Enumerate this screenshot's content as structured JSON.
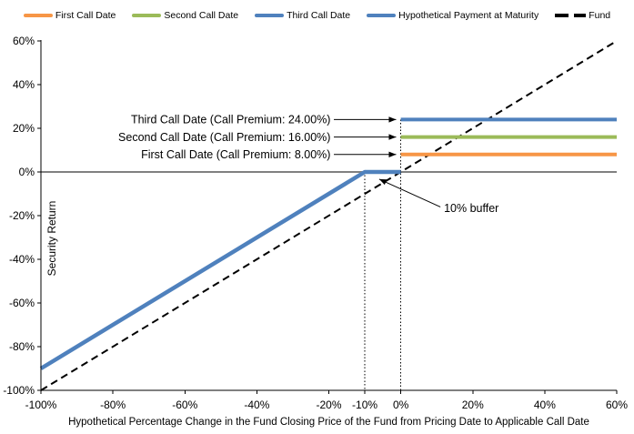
{
  "legend": {
    "items": [
      {
        "label": "First Call Date",
        "color": "#F79646",
        "dash": "solid"
      },
      {
        "label": "Second Call Date",
        "color": "#9BBB59",
        "dash": "solid"
      },
      {
        "label": "Third Call Date",
        "color": "#4F81BD",
        "dash": "solid"
      },
      {
        "label": "Hypothetical Payment at Maturity",
        "color": "#4F81BD",
        "dash": "solid"
      },
      {
        "label": "Fund",
        "color": "#000000",
        "dash": "dashed"
      }
    ]
  },
  "chart_data": {
    "type": "line",
    "title": "",
    "xlabel": "Hypothetical Percentage Change in the Fund Closing Price of the Fund from Pricing Date to Applicable Call Date",
    "ylabel": "Security Return",
    "xlim": [
      -100,
      60
    ],
    "ylim": [
      -100,
      60
    ],
    "grid": false,
    "legend_position": "top",
    "axis_color": "#000000",
    "zero_line_color": "#808080",
    "x_ticks": [
      {
        "value": -100,
        "label": "-100%"
      },
      {
        "value": -80,
        "label": "-80%"
      },
      {
        "value": -60,
        "label": "-60%"
      },
      {
        "value": -40,
        "label": "-40%"
      },
      {
        "value": -20,
        "label": "-20%"
      },
      {
        "value": -10,
        "label": "-10%"
      },
      {
        "value": 0,
        "label": "0%"
      },
      {
        "value": 20,
        "label": "20%"
      },
      {
        "value": 40,
        "label": "40%"
      },
      {
        "value": 60,
        "label": "60%"
      }
    ],
    "y_ticks": [
      {
        "value": 60,
        "label": "60%"
      },
      {
        "value": 40,
        "label": "40%"
      },
      {
        "value": 20,
        "label": "20%"
      },
      {
        "value": 0,
        "label": "0%"
      },
      {
        "value": -20,
        "label": "-20%"
      },
      {
        "value": -40,
        "label": "-40%"
      },
      {
        "value": -60,
        "label": "-60%"
      },
      {
        "value": -80,
        "label": "-80%"
      },
      {
        "value": -100,
        "label": "-100%"
      }
    ],
    "series": [
      {
        "name": "Fund",
        "color": "#000000",
        "style": "dashed",
        "width": 2,
        "points": [
          [
            -100,
            -100
          ],
          [
            60,
            60
          ]
        ]
      },
      {
        "name": "Hypothetical Payment at Maturity",
        "color": "#4F81BD",
        "style": "solid",
        "width": 4.5,
        "points": [
          [
            -100,
            -90
          ],
          [
            -10,
            0
          ],
          [
            0,
            0
          ]
        ]
      },
      {
        "name": "First Call Date",
        "color": "#F79646",
        "style": "solid",
        "width": 4,
        "points": [
          [
            0,
            8
          ],
          [
            60,
            8
          ]
        ]
      },
      {
        "name": "Second Call Date",
        "color": "#9BBB59",
        "style": "solid",
        "width": 4,
        "points": [
          [
            0,
            16
          ],
          [
            60,
            16
          ]
        ]
      },
      {
        "name": "Third Call Date",
        "color": "#4F81BD",
        "style": "solid",
        "width": 4,
        "points": [
          [
            0,
            24
          ],
          [
            60,
            24
          ]
        ]
      }
    ],
    "guides": [
      {
        "x": -10,
        "y_from": 0,
        "y_to": -100,
        "style": "dotted",
        "color": "#000000"
      },
      {
        "x": 0,
        "y_from": 24,
        "y_to": -100,
        "style": "dotted",
        "color": "#000000"
      }
    ],
    "annotations": [
      {
        "id": "third-call-date",
        "text": "Third Call Date (Call Premium: 24.00%)",
        "anchor": "end",
        "label_x": -19.5,
        "label_y": 24,
        "arrow_from": [
          -18.6,
          24
        ],
        "arrow_to": [
          -1.3,
          24
        ]
      },
      {
        "id": "second-call-date",
        "text": "Second Call Date (Call Premium: 16.00%)",
        "anchor": "end",
        "label_x": -19.5,
        "label_y": 16,
        "arrow_from": [
          -18.6,
          16
        ],
        "arrow_to": [
          -1.3,
          16
        ]
      },
      {
        "id": "first-call-date",
        "text": "First Call Date (Call Premium: 8.00%)",
        "anchor": "end",
        "label_x": -19.5,
        "label_y": 8,
        "arrow_from": [
          -18.6,
          8
        ],
        "arrow_to": [
          -1.3,
          8
        ]
      },
      {
        "id": "buffer",
        "text": "10% buffer",
        "anchor": "start",
        "label_x": 12,
        "label_y": -16.5,
        "arrow_from": [
          11,
          -16
        ],
        "arrow_to": [
          -6,
          -3.3
        ]
      }
    ]
  }
}
